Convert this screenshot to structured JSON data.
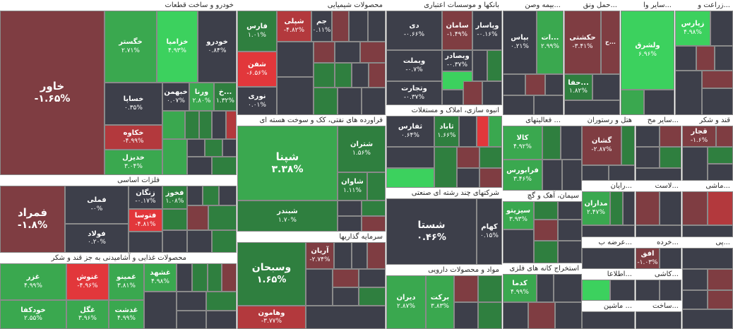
{
  "colors": {
    "grey": "#3d3f4a",
    "dark_red": "#7f3d42",
    "red": "#b3393d",
    "bright_red": "#e2373b",
    "dark_green": "#2f7f3f",
    "green": "#3aa84f",
    "light_green": "#3cd15e"
  },
  "sectors": {
    "auto": "خودرو و ساخت قطعات",
    "chemical": "محصولات شیمیایی",
    "banks": "بانکها و موسسات اعتباری",
    "insurance": "بیمه وصن...",
    "transport": "حمل ونق...",
    "other_fin": "سایر وا...",
    "agri": "زراعت و...",
    "basic_metals": "فلزات اساسی",
    "oil": "فراورده های نفتی، کک و سوخت هسته ای",
    "mass_build": "انبوه سازی، املاک و مستغلات",
    "utilities": "فعالیتهای ...",
    "hotel": "هتل و رستوران",
    "other_mo": "سایر مح...",
    "sugar": "قند و شکر",
    "food": "محصولات غذایی و آشامیدنی به جز قند و شکر",
    "investment": "سرمایه گذاریها",
    "multi": "شرکتهای چند رشته ای صنعتی",
    "cement": "سیمان، آهک و گچ",
    "computer": "رایان...",
    "machines": "ماشی...",
    "sakht": "ساخت...",
    "last": "لاست...",
    "pharma": "مواد و محصولات دارویی",
    "metal_ore": "استخراج کانه های فلزی",
    "arze": "عرضه ب...",
    "khorde": "خرده...",
    "etelaa": "اطلاعا...",
    "kashi": "کاشی...",
    "mashin2": "ماشین ...",
    "sakht2": "ساخت...",
    "pi": "پی..."
  },
  "tiles": {
    "khavar": {
      "sym": "خاور",
      "chg": "-۱.۶۵%"
    },
    "khegostar": {
      "sym": "خگستر",
      "chg": "۲.۷۱%"
    },
    "khezamia": {
      "sym": "خزامیا",
      "chg": "۴.۹۳%"
    },
    "khodro": {
      "sym": "خودرو",
      "chg": "۰.۸۴%"
    },
    "khesapa": {
      "sym": "خساپا",
      "chg": "۰.۳۵%"
    },
    "khebahman": {
      "sym": "خبهمن",
      "chg": "۰.۰۷%"
    },
    "vorna": {
      "sym": "ورنا",
      "chg": "۲.۸۰%"
    },
    "khe_a": {
      "sym": "خ...",
      "chg": "۱.۳۲%"
    },
    "khakave": {
      "sym": "خکاوه",
      "chg": "-۴.۹۹%"
    },
    "khedizel": {
      "sym": "خدیزل",
      "chg": "۳.۰۴%"
    },
    "fars": {
      "sym": "فارس",
      "chg": "۱.۰۱%"
    },
    "shapli": {
      "sym": "شپلی",
      "chg": "-۴.۸۲%"
    },
    "jam": {
      "sym": "جم",
      "chg": "۰.۱۱%"
    },
    "shaghan": {
      "sym": "شفن",
      "chg": "-۶.۵۶%"
    },
    "noori": {
      "sym": "نوری",
      "chg": "۰.۰۱%"
    },
    "dey": {
      "sym": "دی",
      "chg": "-۰.۶۶%"
    },
    "saman": {
      "sym": "سامان",
      "chg": "-۱.۴۹%"
    },
    "vapasar": {
      "sym": "وپاسار",
      "chg": "-۰.۱۶%"
    },
    "vebmelat": {
      "sym": "وبملت",
      "chg": "-۰.۷%"
    },
    "vebsader": {
      "sym": "وبصادر",
      "chg": "-۰.۳۷%"
    },
    "vtejarat": {
      "sym": "وتجارت",
      "chg": "-۰.۳۷%"
    },
    "bapas": {
      "sym": "بپاس",
      "chg": "۰.۲۱%"
    },
    "at": {
      "sym": "ات...",
      "chg": "۲.۹۹%"
    },
    "hakeshti": {
      "sym": "حکشتی",
      "chg": "-۳.۴۱%"
    },
    "hafa": {
      "sym": "حفا...",
      "chg": "۱.۸۲%"
    },
    "valshargh": {
      "sym": "ولشرق",
      "chg": "۶.۹۶%"
    },
    "zapars": {
      "sym": "زپارس",
      "chg": "۴.۹۸%"
    },
    "fameli": {
      "sym": "فملی",
      "chg": "-۰%"
    },
    "zangan": {
      "sym": "زنگان",
      "chg": "-۰.۱۷%"
    },
    "fakhoz": {
      "sym": "فخوز",
      "chg": "۱.۰۸%"
    },
    "famerad": {
      "sym": "فمراد",
      "chg": "-۱.۸%"
    },
    "fooladd": {
      "sym": "فولاد",
      "chg": "۰.۲۰%"
    },
    "fetosa": {
      "sym": "فتوسا",
      "chg": "-۴.۸۱%"
    },
    "shepna": {
      "sym": "شپنا",
      "chg": "۳.۳۸%"
    },
    "shetran": {
      "sym": "شتران",
      "chg": "۱.۵۶%"
    },
    "shavan": {
      "sym": "شاوان",
      "chg": "۱.۱۱%"
    },
    "shebandar": {
      "sym": "شبندر",
      "chg": "۱.۷۰%"
    },
    "thefars": {
      "sym": "ثفارس",
      "chg": "۰.۶۴%"
    },
    "thabad": {
      "sym": "ثاباد",
      "chg": "۱.۶۶%"
    },
    "kala": {
      "sym": "کالا",
      "chg": "۴.۹۲%"
    },
    "fara": {
      "sym": "فرابورس",
      "chg": "۳.۴۶%"
    },
    "gheshan": {
      "sym": "گشان",
      "chg": "-۲.۸۷%"
    },
    "ghajar": {
      "sym": "قجار",
      "chg": "-۱.۶%"
    },
    "ghazar": {
      "sym": "غزر",
      "chg": "۴.۹۹%"
    },
    "ghanoosh": {
      "sym": "غنوش",
      "chg": "-۴.۹۶%"
    },
    "ghamino": {
      "sym": "غمینو",
      "chg": "۳.۸۱%"
    },
    "ghashahd": {
      "sym": "غشهد",
      "chg": "۴.۹۸%"
    },
    "khoodkafa": {
      "sym": "خودکفا",
      "chg": "۲.۵۵%"
    },
    "ghegol": {
      "sym": "غگل",
      "chg": "۳.۹۶%"
    },
    "ghedasht": {
      "sym": "غدشت",
      "chg": "۴.۹۹%"
    },
    "vasabhan": {
      "sym": "وسبحان",
      "chg": "۱.۶۵%"
    },
    "arian": {
      "sym": "آریان",
      "chg": "-۲.۷۴%"
    },
    "vahamoon": {
      "sym": "وهامون",
      "chg": "-۳.۷۷%"
    },
    "shesta": {
      "sym": "شستا",
      "chg": "۰.۴۶%"
    },
    "sezitoo": {
      "sym": "سیزیتو",
      "chg": "۳.۹۳%"
    },
    "modaran": {
      "sym": "مداران",
      "chg": "۲.۴۷%"
    },
    "afagh": {
      "sym": "افق",
      "chg": "-۱.۰۳%"
    },
    "dizan": {
      "sym": "دیران",
      "chg": "۲.۸۷%"
    },
    "barakat": {
      "sym": "برکت",
      "chg": "۳.۸۳%"
    },
    "kadma": {
      "sym": "کدما",
      "chg": "۴.۹۹%"
    },
    "kahami": {
      "sym": "کهام",
      "chg": "۰.۱۵%"
    }
  }
}
